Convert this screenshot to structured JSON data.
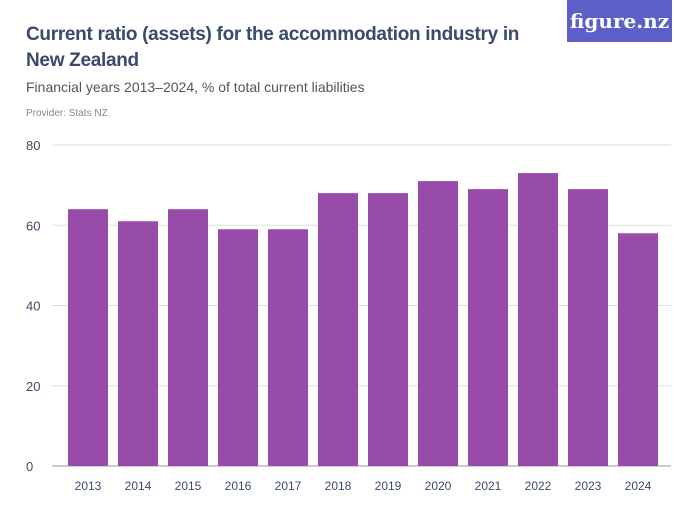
{
  "header": {
    "title": "Current ratio (assets) for the accommodation industry in New Zealand",
    "subtitle": "Financial years 2013–2024, % of total current liabilities",
    "provider": "Provider: Stats NZ",
    "logo": "figure.nz"
  },
  "colors": {
    "bar": "#974ca9",
    "logo_bg": "#5b5fc7",
    "grid": "#dddddd"
  },
  "chart_data": {
    "type": "bar",
    "title": "Current ratio (assets) for the accommodation industry in New Zealand",
    "subtitle": "Financial years 2013–2024, % of total current liabilities",
    "categories": [
      "2013",
      "2014",
      "2015",
      "2016",
      "2017",
      "2018",
      "2019",
      "2020",
      "2021",
      "2022",
      "2023",
      "2024"
    ],
    "values": [
      64,
      61,
      64,
      59,
      59,
      68,
      68,
      71,
      69,
      73,
      69,
      58
    ],
    "ylim": [
      0,
      80
    ],
    "yticks": [
      0,
      20,
      40,
      60,
      80
    ],
    "grid": true,
    "xlabel": "",
    "ylabel": ""
  }
}
